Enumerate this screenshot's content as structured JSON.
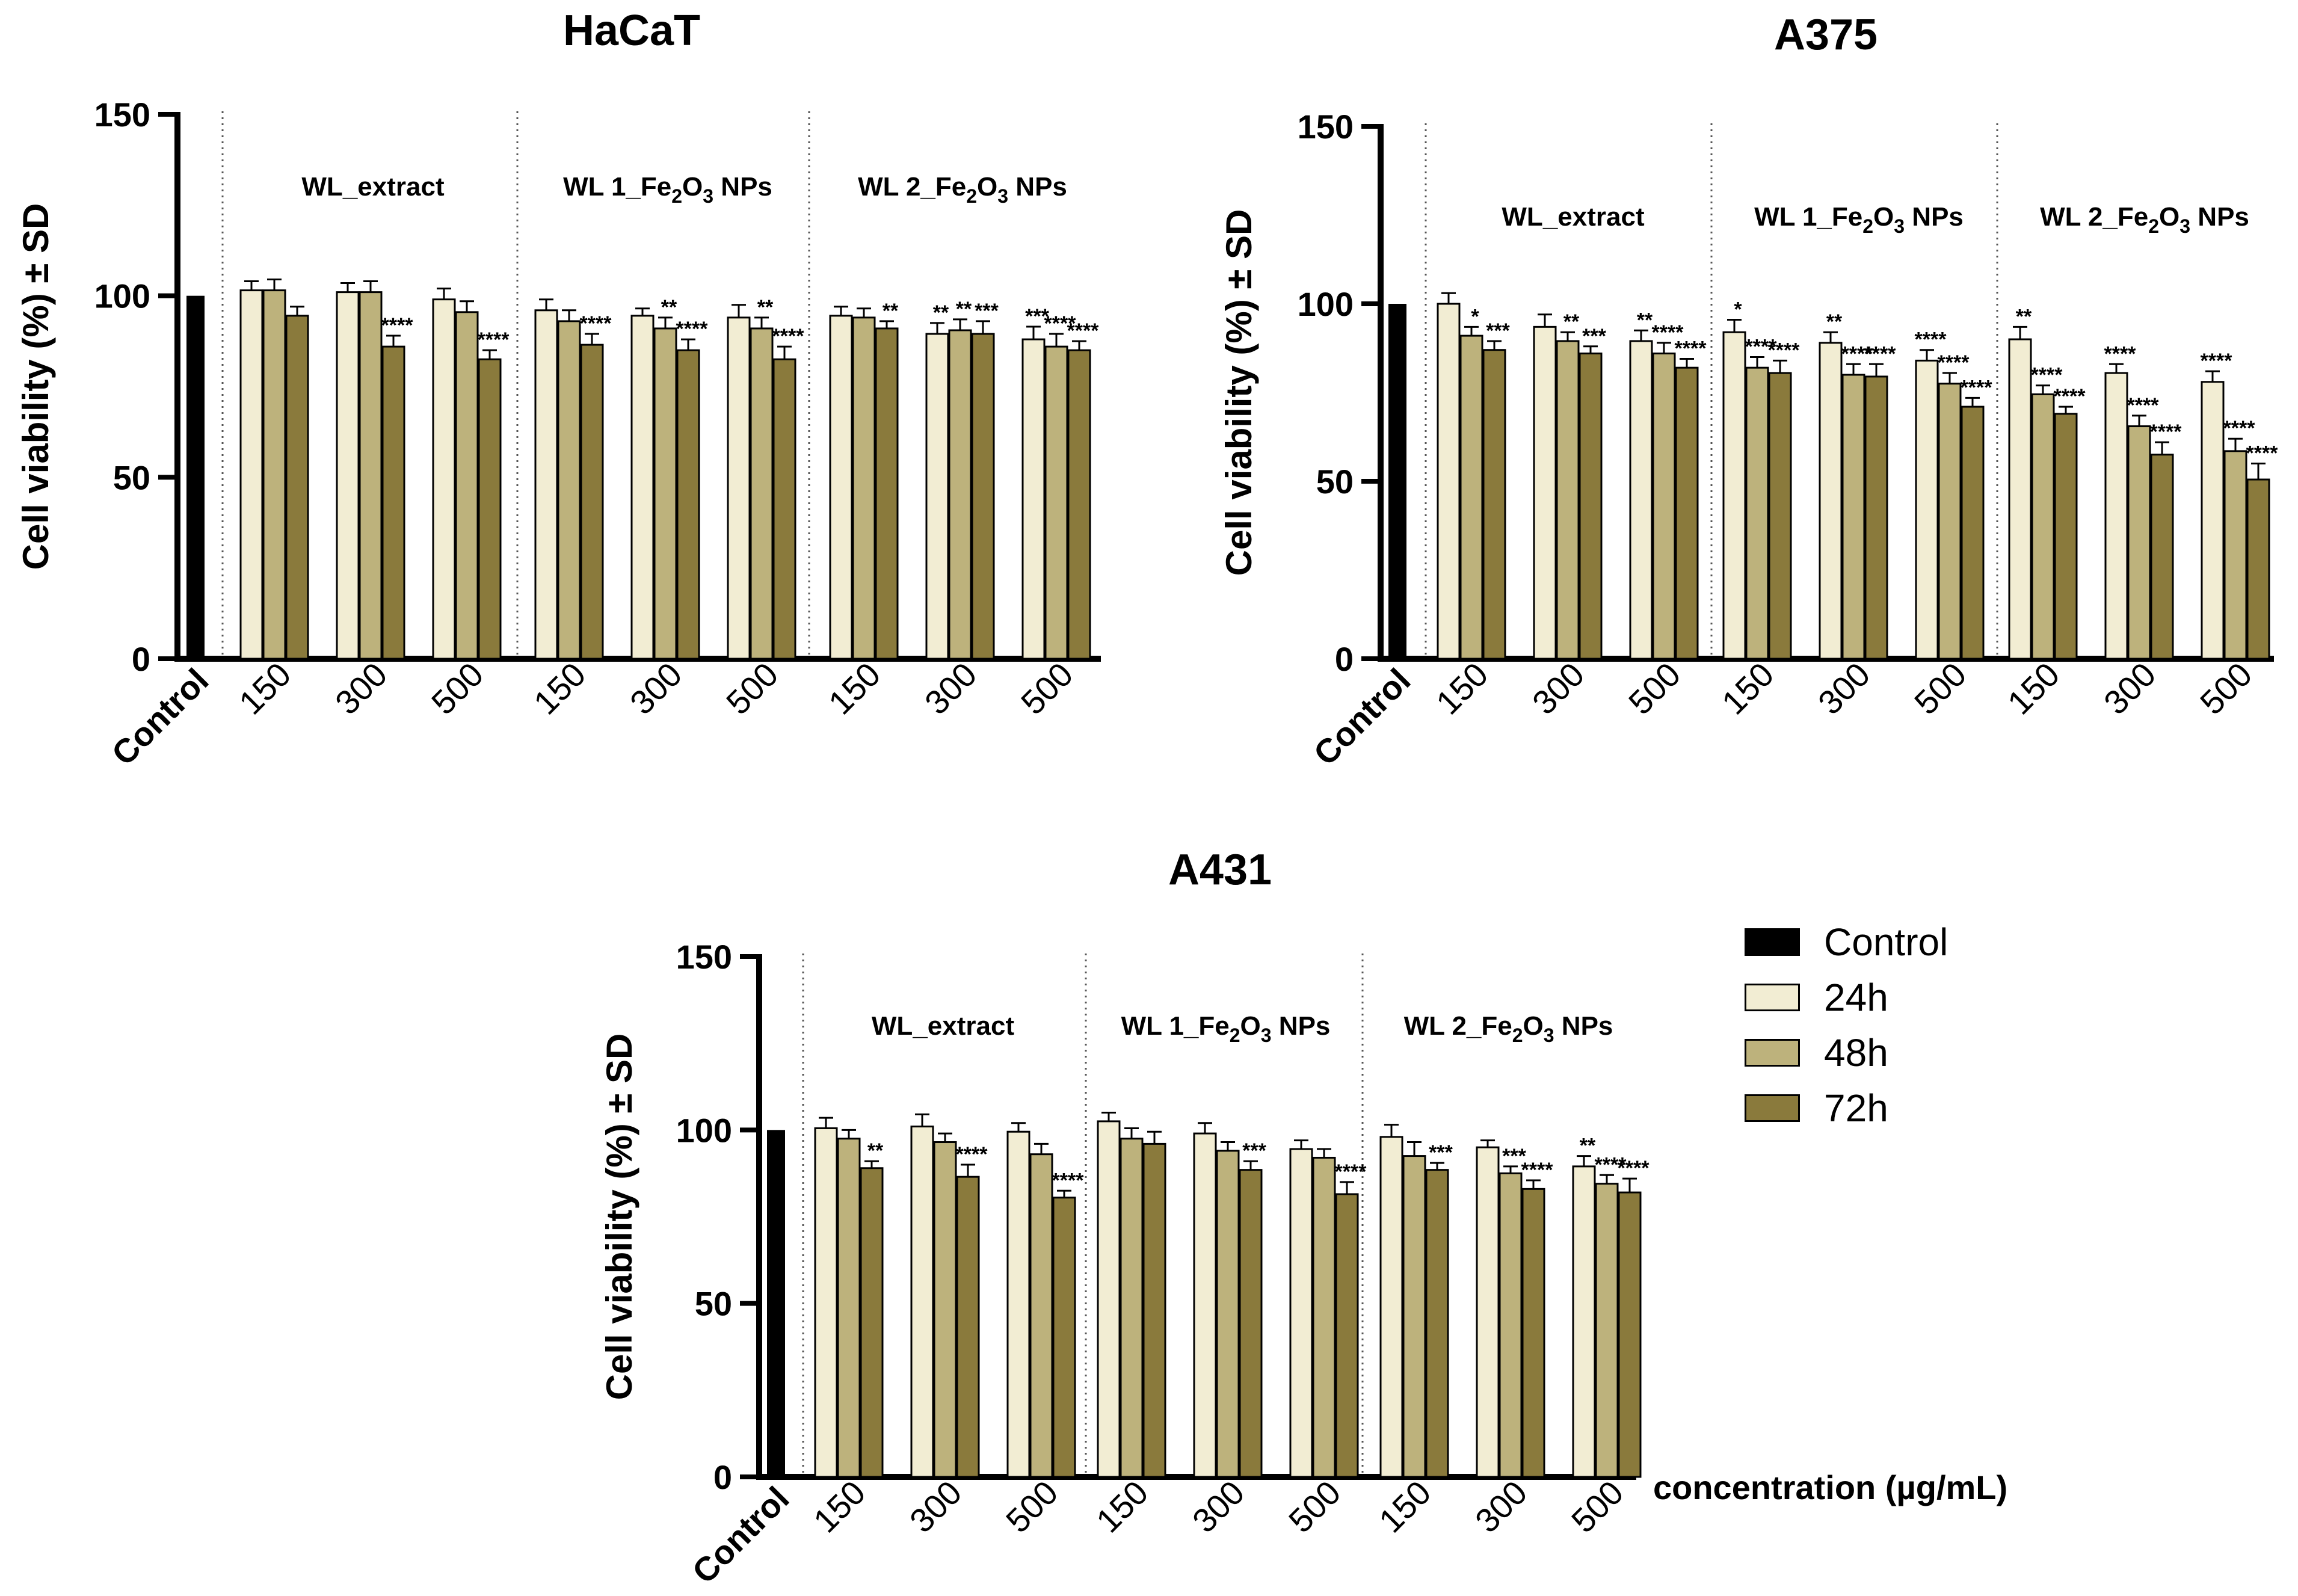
{
  "colors": {
    "control": "#000000",
    "h24": "#f2edd3",
    "h48": "#bdb27c",
    "h72": "#8a7a3c"
  },
  "legend": {
    "items": [
      {
        "label": "Control",
        "color": "#000000"
      },
      {
        "label": "24h",
        "color": "#f2edd3"
      },
      {
        "label": "48h",
        "color": "#bdb27c"
      },
      {
        "label": "72h",
        "color": "#8a7a3c"
      }
    ]
  },
  "x_axis_title": "concentration (µg/mL)",
  "chart_data": [
    {
      "type": "bar",
      "title": "HaCaT",
      "ylabel": "Cell viability (%) ± SD",
      "ylim": [
        0,
        150
      ],
      "yticks": [
        0,
        50,
        100,
        150
      ],
      "control": {
        "label": "Control",
        "value": 100
      },
      "groups": [
        {
          "name_main": "WL_extract",
          "name_sub": "",
          "name_tail": "",
          "categories": [
            "150",
            "300",
            "500"
          ],
          "series": {
            "24h": {
              "values": [
                101.5,
                101,
                99
              ],
              "sd": [
                2.5,
                2.5,
                3
              ],
              "sig": [
                "",
                "",
                ""
              ]
            },
            "48h": {
              "values": [
                101.5,
                101,
                95.5
              ],
              "sd": [
                3,
                3,
                3
              ],
              "sig": [
                "",
                "",
                ""
              ]
            },
            "72h": {
              "values": [
                94.5,
                86,
                82.5
              ],
              "sd": [
                2.5,
                3,
                2.5
              ],
              "sig": [
                "",
                "****",
                "****"
              ]
            }
          }
        },
        {
          "name_main": "WL 1_Fe",
          "name_sub": "2",
          "name_mid": "O",
          "name_sub2": "3",
          "name_tail": " NPs",
          "categories": [
            "150",
            "300",
            "500"
          ],
          "series": {
            "24h": {
              "values": [
                96,
                94.5,
                94
              ],
              "sd": [
                3,
                2,
                3.5
              ],
              "sig": [
                "",
                "",
                ""
              ]
            },
            "48h": {
              "values": [
                93,
                91,
                91
              ],
              "sd": [
                3,
                3,
                3
              ],
              "sig": [
                "",
                "**",
                "**"
              ]
            },
            "72h": {
              "values": [
                86.5,
                85,
                82.5
              ],
              "sd": [
                3,
                3,
                3.5
              ],
              "sig": [
                "****",
                "****",
                "****"
              ]
            }
          }
        },
        {
          "name_main": "WL 2_Fe",
          "name_sub": "2",
          "name_mid": "O",
          "name_sub2": "3",
          "name_tail": " NPs",
          "categories": [
            "150",
            "300",
            "500"
          ],
          "series": {
            "24h": {
              "values": [
                94.5,
                89.5,
                88
              ],
              "sd": [
                2.5,
                3,
                3.5
              ],
              "sig": [
                "",
                "**",
                "***"
              ]
            },
            "48h": {
              "values": [
                94,
                90.5,
                86
              ],
              "sd": [
                2.5,
                3,
                3.5
              ],
              "sig": [
                "",
                "**",
                "****"
              ]
            },
            "72h": {
              "values": [
                91,
                89.5,
                85
              ],
              "sd": [
                2,
                3.5,
                2.5
              ],
              "sig": [
                "**",
                "***",
                "****"
              ]
            }
          }
        }
      ]
    },
    {
      "type": "bar",
      "title": "A375",
      "ylabel": "Cell viability (%) ± SD",
      "ylim": [
        0,
        150
      ],
      "yticks": [
        0,
        50,
        100,
        150
      ],
      "control": {
        "label": "Control",
        "value": 100
      },
      "groups": [
        {
          "name_main": "WL_extract",
          "name_sub": "",
          "name_tail": "",
          "categories": [
            "150",
            "300",
            "500"
          ],
          "series": {
            "24h": {
              "values": [
                100,
                93.5,
                89.5
              ],
              "sd": [
                3,
                3.5,
                3
              ],
              "sig": [
                "",
                "",
                "**"
              ]
            },
            "48h": {
              "values": [
                91,
                89.5,
                86
              ],
              "sd": [
                2.5,
                2.5,
                3
              ],
              "sig": [
                "*",
                "**",
                "****"
              ]
            },
            "72h": {
              "values": [
                87,
                86,
                82
              ],
              "sd": [
                2.5,
                2,
                2.5
              ],
              "sig": [
                "***",
                "***",
                "****"
              ]
            }
          }
        },
        {
          "name_main": "WL 1_Fe",
          "name_sub": "2",
          "name_mid": "O",
          "name_sub2": "3",
          "name_tail": " NPs",
          "categories": [
            "150",
            "300",
            "500"
          ],
          "series": {
            "24h": {
              "values": [
                92,
                89,
                84
              ],
              "sd": [
                3.5,
                3,
                3
              ],
              "sig": [
                "*",
                "**",
                "****"
              ]
            },
            "48h": {
              "values": [
                82,
                80,
                77.5
              ],
              "sd": [
                3,
                3,
                3
              ],
              "sig": [
                "****",
                "****",
                "****"
              ]
            },
            "72h": {
              "values": [
                80.5,
                79.5,
                71
              ],
              "sd": [
                3.5,
                3.5,
                2.5
              ],
              "sig": [
                "****",
                "****",
                "****"
              ]
            }
          }
        },
        {
          "name_main": "WL 2_Fe",
          "name_sub": "2",
          "name_mid": "O",
          "name_sub2": "3",
          "name_tail": " NPs",
          "categories": [
            "150",
            "300",
            "500"
          ],
          "series": {
            "24h": {
              "values": [
                90,
                80.5,
                78
              ],
              "sd": [
                3.5,
                2.5,
                3
              ],
              "sig": [
                "**",
                "****",
                "****"
              ]
            },
            "48h": {
              "values": [
                74.5,
                65.5,
                58.5
              ],
              "sd": [
                2.5,
                3,
                3.5
              ],
              "sig": [
                "****",
                "****",
                "****"
              ]
            },
            "72h": {
              "values": [
                69,
                57.5,
                50.5
              ],
              "sd": [
                2,
                3.5,
                4.5
              ],
              "sig": [
                "****",
                "****",
                "****"
              ]
            }
          }
        }
      ]
    },
    {
      "type": "bar",
      "title": "A431",
      "ylabel": "Cell viability (%) ± SD",
      "ylim": [
        0,
        150
      ],
      "yticks": [
        0,
        50,
        100,
        150
      ],
      "control": {
        "label": "Control",
        "value": 100
      },
      "groups": [
        {
          "name_main": "WL_extract",
          "name_sub": "",
          "name_tail": "",
          "categories": [
            "150",
            "300",
            "500"
          ],
          "series": {
            "24h": {
              "values": [
                100.5,
                101,
                99.5
              ],
              "sd": [
                3,
                3.5,
                2.5
              ],
              "sig": [
                "",
                "",
                ""
              ]
            },
            "48h": {
              "values": [
                97.5,
                96.5,
                93
              ],
              "sd": [
                2.5,
                2.5,
                3
              ],
              "sig": [
                "",
                "",
                ""
              ]
            },
            "72h": {
              "values": [
                89,
                86.5,
                80.5
              ],
              "sd": [
                2,
                3.5,
                2
              ],
              "sig": [
                "**",
                "****",
                "****"
              ]
            }
          }
        },
        {
          "name_main": "WL 1_Fe",
          "name_sub": "2",
          "name_mid": "O",
          "name_sub2": "3",
          "name_tail": " NPs",
          "categories": [
            "150",
            "300",
            "500"
          ],
          "series": {
            "24h": {
              "values": [
                102.5,
                99,
                94.5
              ],
              "sd": [
                2.5,
                3,
                2.5
              ],
              "sig": [
                "",
                "",
                ""
              ]
            },
            "48h": {
              "values": [
                97.5,
                94,
                92
              ],
              "sd": [
                3,
                2.5,
                2.5
              ],
              "sig": [
                "",
                "",
                ""
              ]
            },
            "72h": {
              "values": [
                96,
                88.5,
                81.5
              ],
              "sd": [
                3.5,
                2.5,
                3.5
              ],
              "sig": [
                "",
                "***",
                "****"
              ]
            }
          }
        },
        {
          "name_main": "WL 2_Fe",
          "name_sub": "2",
          "name_mid": "O",
          "name_sub2": "3",
          "name_tail": " NPs",
          "categories": [
            "150",
            "300",
            "500"
          ],
          "series": {
            "24h": {
              "values": [
                98,
                95,
                89.5
              ],
              "sd": [
                3.5,
                2,
                3
              ],
              "sig": [
                "",
                "",
                "**"
              ]
            },
            "48h": {
              "values": [
                92.5,
                87.5,
                84.5
              ],
              "sd": [
                4,
                2,
                2.5
              ],
              "sig": [
                "",
                "***",
                "****"
              ]
            },
            "72h": {
              "values": [
                88.5,
                83,
                82
              ],
              "sd": [
                2,
                2.5,
                4
              ],
              "sig": [
                "***",
                "****",
                "****"
              ]
            }
          }
        }
      ]
    }
  ]
}
